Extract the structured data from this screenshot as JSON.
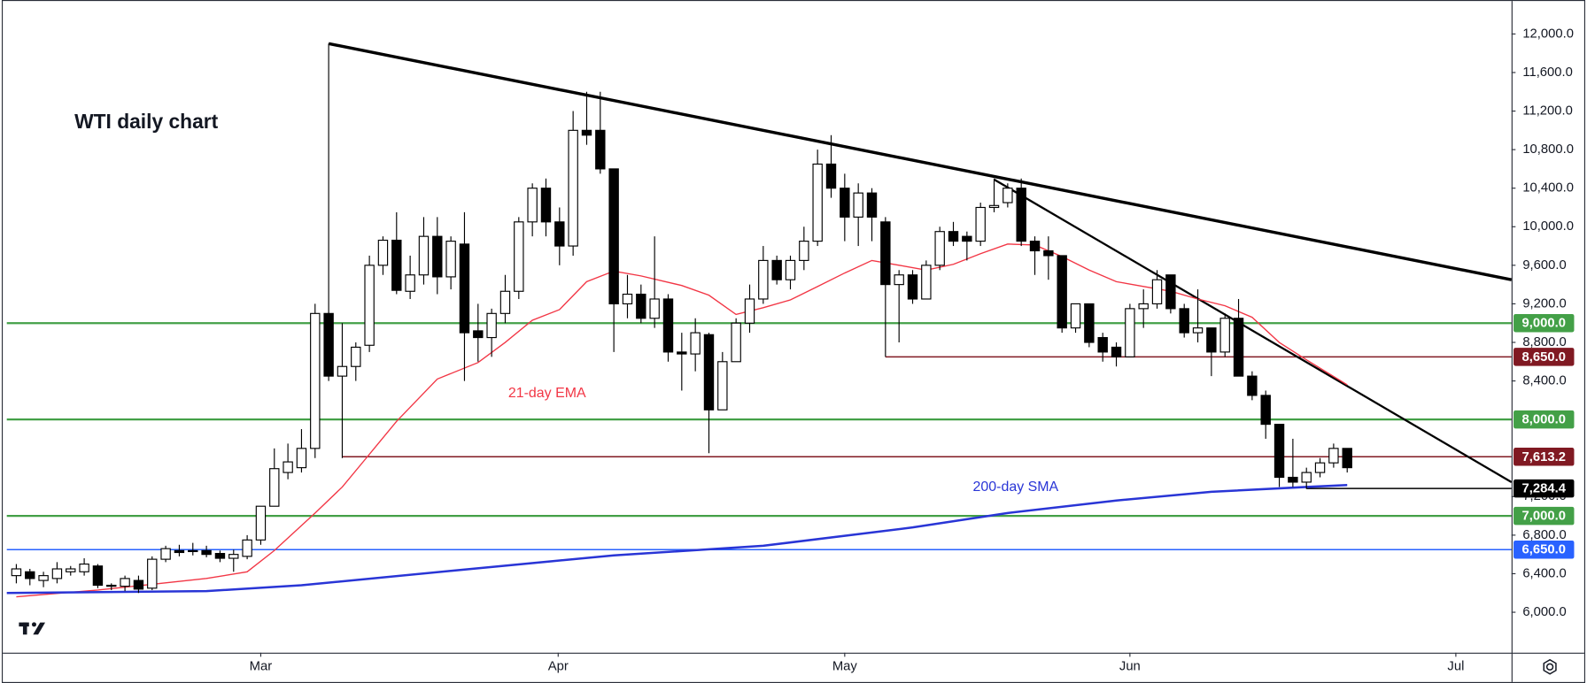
{
  "chart_data": {
    "type": "candlestick",
    "title": "WTI daily chart",
    "xlim": [
      -0.7,
      110.1
    ],
    "ylim": [
      5580,
      12300
    ],
    "xticks": [
      {
        "value": 18,
        "label": "Mar"
      },
      {
        "value": 39.9,
        "label": "Apr"
      },
      {
        "value": 61,
        "label": "May"
      },
      {
        "value": 82,
        "label": "Jun"
      },
      {
        "value": 106,
        "label": "Jul"
      }
    ],
    "yticks": [
      {
        "value": 6000,
        "label": "6,000.0"
      },
      {
        "value": 6400,
        "label": "6,400.0"
      },
      {
        "value": 6800,
        "label": "6,800.0"
      },
      {
        "value": 7200,
        "label": "7,200.0"
      },
      {
        "value": 8400,
        "label": "8,400.0"
      },
      {
        "value": 8800,
        "label": "8,800.0"
      },
      {
        "value": 9200,
        "label": "9,200.0"
      },
      {
        "value": 9600,
        "label": "9,600.0"
      },
      {
        "value": 10000,
        "label": "10,000.0"
      },
      {
        "value": 10400,
        "label": "10,400.0"
      },
      {
        "value": 10800,
        "label": "10,800.0"
      },
      {
        "value": 11200,
        "label": "11,200.0"
      },
      {
        "value": 11600,
        "label": "11,600.0"
      },
      {
        "value": 12000,
        "label": "12,000.0"
      }
    ],
    "up_color": "#ffffff",
    "down_color": "#000000",
    "open": [
      6380,
      6420,
      6330,
      6350,
      6420,
      6420,
      6480,
      6280,
      6270,
      6330,
      6250,
      6550,
      6640,
      6630,
      6640,
      6610,
      6560,
      6580,
      6750,
      7100,
      7450,
      7500,
      7700,
      9100,
      8450,
      8550,
      8770,
      9600,
      9860,
      9330,
      9500,
      9900,
      9480,
      9820,
      8920,
      8850,
      9100,
      9330,
      10050,
      10400,
      10050,
      9800,
      11000,
      11000,
      10600,
      9200,
      9300,
      9050,
      9250,
      8700,
      8680,
      8880,
      8100,
      8600,
      9000,
      9250,
      9650,
      9450,
      9650,
      9850,
      10650,
      10400,
      10100,
      10350,
      10050,
      9400,
      9500,
      9250,
      9600,
      9950,
      9900,
      9850,
      10200,
      10250,
      10400,
      9850,
      9750,
      9700,
      8950,
      9200,
      8850,
      8750,
      8650,
      9150,
      9200,
      9500,
      9150,
      8900,
      8950,
      8700,
      9050,
      8450,
      8250,
      7950,
      7400,
      7350,
      7450,
      7550,
      7700
    ],
    "high": [
      6500,
      6450,
      6420,
      6520,
      6480,
      6560,
      6500,
      6300,
      6380,
      6380,
      6580,
      6690,
      6700,
      6720,
      6690,
      6640,
      6650,
      6800,
      7100,
      7700,
      7750,
      7900,
      9200,
      11900,
      9000,
      8800,
      9700,
      9900,
      10150,
      9700,
      10100,
      10100,
      9900,
      10150,
      9200,
      9150,
      9500,
      10100,
      10450,
      10500,
      10200,
      11200,
      11400,
      11400,
      10600,
      9500,
      9400,
      9900,
      9300,
      8900,
      9050,
      8900,
      8700,
      9050,
      9400,
      9800,
      9700,
      9700,
      10000,
      10800,
      10950,
      10550,
      10450,
      10400,
      10100,
      9550,
      9550,
      9650,
      10000,
      10050,
      9950,
      10250,
      10500,
      10450,
      10500,
      9900,
      9900,
      9700,
      9200,
      9200,
      8900,
      8800,
      9200,
      9350,
      9550,
      9500,
      9200,
      9350,
      8950,
      9100,
      9250,
      8500,
      8300,
      7950,
      7800,
      7500,
      7600,
      7750,
      7700
    ],
    "low": [
      6300,
      6280,
      6260,
      6300,
      6380,
      6380,
      6250,
      6230,
      6220,
      6200,
      6230,
      6520,
      6580,
      6590,
      6570,
      6520,
      6420,
      6550,
      6700,
      7100,
      7380,
      7450,
      7600,
      8400,
      7600,
      8400,
      8700,
      9500,
      9300,
      9250,
      9400,
      9300,
      9350,
      8400,
      8600,
      8650,
      9000,
      9250,
      9900,
      9900,
      9600,
      9700,
      10850,
      10550,
      8700,
      9050,
      9000,
      8950,
      8600,
      8300,
      8500,
      7650,
      8100,
      8600,
      8900,
      9200,
      9400,
      9350,
      9550,
      9800,
      10300,
      9850,
      9800,
      9850,
      8650,
      8800,
      9200,
      9300,
      9550,
      9800,
      9650,
      9800,
      10150,
      10200,
      9800,
      9500,
      9450,
      8900,
      8900,
      8750,
      8600,
      8550,
      8650,
      8950,
      9150,
      9100,
      8850,
      8800,
      8450,
      8650,
      8450,
      8200,
      7800,
      7300,
      7300,
      7280,
      7400,
      7500,
      7450
    ],
    "close": [
      6450,
      6350,
      6380,
      6450,
      6450,
      6500,
      6280,
      6270,
      6350,
      6240,
      6550,
      6660,
      6620,
      6640,
      6600,
      6560,
      6600,
      6750,
      7100,
      7490,
      7560,
      7700,
      9100,
      8450,
      8550,
      8750,
      9600,
      9860,
      9340,
      9500,
      9900,
      9480,
      9850,
      8900,
      8850,
      9100,
      9330,
      10050,
      10400,
      10050,
      9800,
      11000,
      10950,
      10600,
      9200,
      9300,
      9050,
      9250,
      8700,
      8680,
      8900,
      8100,
      8600,
      9000,
      9250,
      9650,
      9450,
      9650,
      9850,
      10650,
      10400,
      10100,
      10350,
      10100,
      9400,
      9500,
      9250,
      9600,
      9950,
      9850,
      9850,
      10200,
      10220,
      10400,
      9850,
      9750,
      9700,
      8950,
      9200,
      8800,
      8700,
      8650,
      9150,
      9200,
      9450,
      9150,
      8900,
      8950,
      8700,
      9050,
      8450,
      8250,
      7950,
      7400,
      7350,
      7450,
      7550,
      7700,
      7500
    ],
    "series": [
      {
        "name": "21-day EMA",
        "color": "#f23645",
        "x": [
          0,
          6,
          10,
          14,
          17,
          19,
          22,
          24,
          26,
          28,
          31,
          34,
          36,
          38,
          40,
          42,
          44,
          46,
          49,
          51,
          53,
          55,
          57,
          59,
          61,
          63,
          65,
          67,
          69,
          71,
          73,
          75,
          77,
          79,
          81,
          83,
          85,
          87,
          89,
          91,
          93,
          95,
          98
        ],
        "values": [
          6160,
          6230,
          6290,
          6350,
          6420,
          6640,
          7030,
          7300,
          7640,
          7980,
          8420,
          8590,
          8800,
          9030,
          9140,
          9430,
          9540,
          9490,
          9390,
          9290,
          9090,
          9160,
          9240,
          9380,
          9520,
          9650,
          9600,
          9550,
          9610,
          9720,
          9820,
          9810,
          9690,
          9550,
          9430,
          9380,
          9330,
          9250,
          9180,
          9060,
          8800,
          8620,
          8360
        ]
      },
      {
        "name": "200-day SMA",
        "color": "#2935d6",
        "x": [
          -0.7,
          14,
          21,
          32,
          44,
          55,
          66,
          73,
          81,
          88,
          95,
          98
        ],
        "values": [
          6200,
          6220,
          6280,
          6430,
          6590,
          6690,
          6880,
          7030,
          7160,
          7250,
          7300,
          7320
        ]
      }
    ],
    "levels": [
      {
        "value": 9000,
        "label": "9,000.0",
        "color": "#43a047"
      },
      {
        "value": 8650,
        "label": "8,650.0",
        "color": "#801922",
        "from": 64
      },
      {
        "value": 8000,
        "label": "8,000.0",
        "color": "#43a047"
      },
      {
        "value": 7613.2,
        "label": "7,613.2",
        "color": "#801922",
        "from": 24
      },
      {
        "value": 7284.4,
        "label": "7,284.4",
        "color": "#000000",
        "from": 95
      },
      {
        "value": 7000,
        "label": "7,000.0",
        "color": "#43a047"
      },
      {
        "value": 6650,
        "label": "6,650.0",
        "color": "#2962ff"
      }
    ],
    "trendlines": [
      {
        "x": [
          23,
          110.1
        ],
        "values": [
          11900,
          9450
        ]
      },
      {
        "x": [
          72,
          110.1
        ],
        "values": [
          10490,
          7350
        ]
      }
    ]
  }
}
